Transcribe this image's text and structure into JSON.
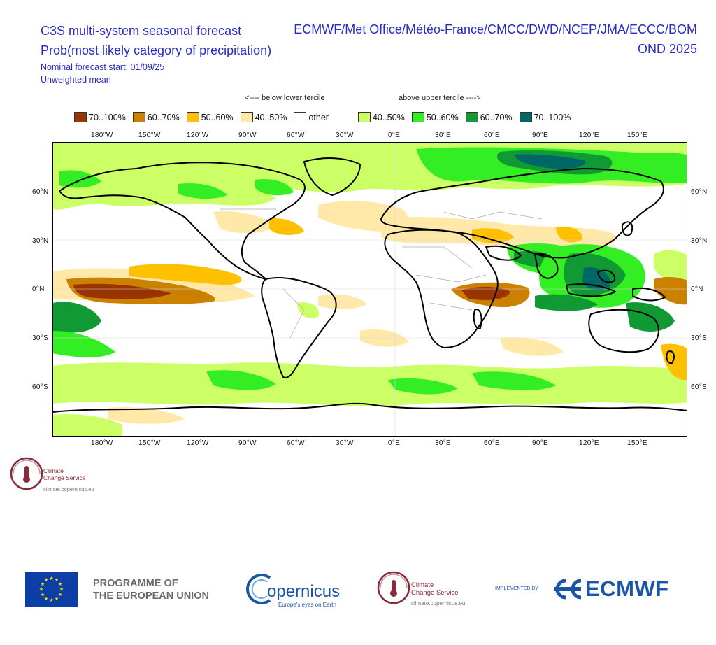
{
  "header": {
    "title_left": "C3S multi-system seasonal forecast",
    "title_right": "ECMWF/Met Office/Météo-France/CMCC/DWD/NCEP/JMA/ECCC/BOM",
    "subtitle_left": "Prob(most likely category of precipitation)",
    "subtitle_right": "OND 2025",
    "start_line": "Nominal forecast start: 01/09/25",
    "mean_line": "Unweighted mean"
  },
  "legend": {
    "below_header": "<---- below lower tercile",
    "above_header": "above upper tercile ---->",
    "items": [
      {
        "label": "70..100%",
        "color": "#993300"
      },
      {
        "label": "60..70%",
        "color": "#cc8000"
      },
      {
        "label": "50..60%",
        "color": "#ffc000"
      },
      {
        "label": "40..50%",
        "color": "#ffe8a8"
      },
      {
        "label": "other",
        "color": "#ffffff"
      },
      {
        "label": "40..50%",
        "color": "#ccff66"
      },
      {
        "label": "50..60%",
        "color": "#33ee22"
      },
      {
        "label": "60..70%",
        "color": "#119933"
      },
      {
        "label": "70..100%",
        "color": "#006666"
      }
    ]
  },
  "axes": {
    "lon_labels": [
      "180°W",
      "150°W",
      "120°W",
      "90°W",
      "60°W",
      "30°W",
      "0°E",
      "30°E",
      "60°E",
      "90°E",
      "120°E",
      "150°E"
    ],
    "lat_labels": [
      "60°N",
      "30°N",
      "0°N",
      "30°S",
      "60°S"
    ]
  },
  "logo_top": {
    "line1": "Climate",
    "line2": "Change Service",
    "url": "climate.copernicus.eu"
  },
  "footer": {
    "programme_line1": "PROGRAMME OF",
    "programme_line2": "THE EUROPEAN UNION",
    "copernicus": "opernicus",
    "copernicus_tagline": "Europe's eyes on Earth",
    "ccs_line1": "Climate",
    "ccs_line2": "Change Service",
    "ccs_url": "climate.copernicus.eu",
    "implemented_by": "IMPLEMENTED BY",
    "ecmwf": "ECMWF"
  },
  "colors": {
    "title_blue": "#2a2ac8",
    "ecmwf_blue": "#1a56a8",
    "ccs_red": "#8a2a3a"
  }
}
